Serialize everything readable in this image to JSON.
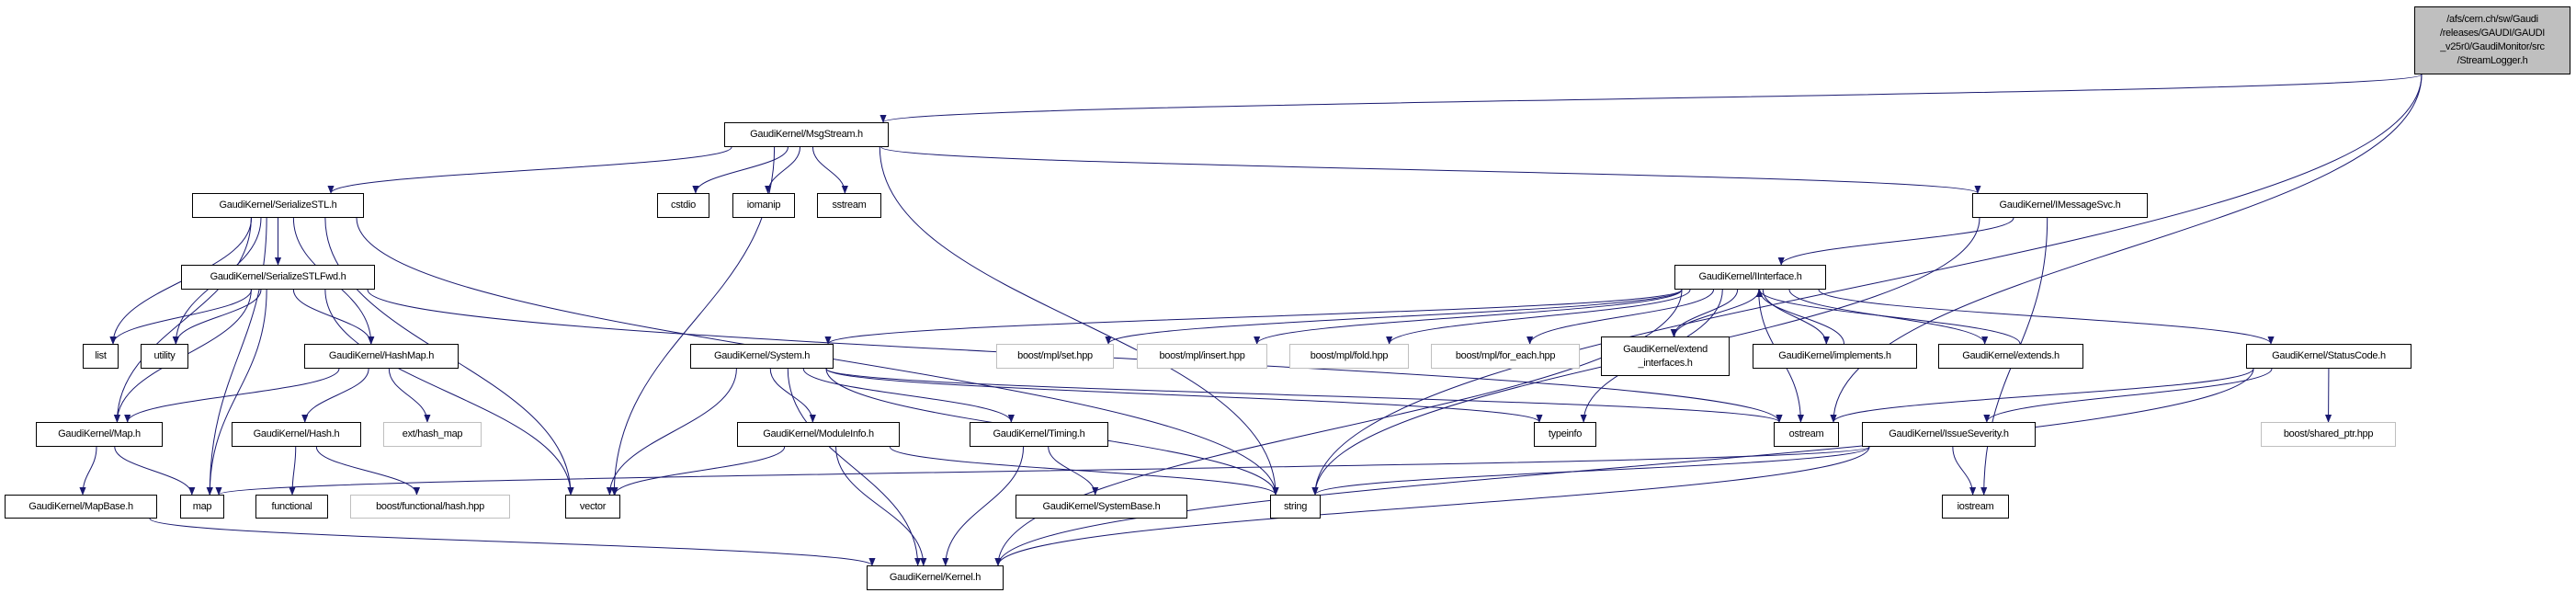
{
  "graph": {
    "type": "include-dependency-graph",
    "edge_color": "#191970",
    "root_fill": "#bfbfbf",
    "external_border": "#bfbfbf",
    "nodes": [
      {
        "id": "root",
        "label": "/afs/cern.ch/sw/Gaudi\n/releases/GAUDI/GAUDI\n_v25r0/GaudiMonitor/src\n/StreamLogger.h",
        "kind": "root"
      },
      {
        "id": "msgstream",
        "label": "GaudiKernel/MsgStream.h",
        "kind": "file"
      },
      {
        "id": "serializestl",
        "label": "GaudiKernel/SerializeSTL.h",
        "kind": "file"
      },
      {
        "id": "cstdio",
        "label": "cstdio",
        "kind": "file"
      },
      {
        "id": "iomanip",
        "label": "iomanip",
        "kind": "file"
      },
      {
        "id": "sstream",
        "label": "sstream",
        "kind": "file"
      },
      {
        "id": "imessagesvc",
        "label": "GaudiKernel/IMessageSvc.h",
        "kind": "file"
      },
      {
        "id": "serializestlfwd",
        "label": "GaudiKernel/SerializeSTLFwd.h",
        "kind": "file"
      },
      {
        "id": "iinterface",
        "label": "GaudiKernel/IInterface.h",
        "kind": "file"
      },
      {
        "id": "list",
        "label": "list",
        "kind": "file"
      },
      {
        "id": "utility",
        "label": "utility",
        "kind": "file"
      },
      {
        "id": "hashmap",
        "label": "GaudiKernel/HashMap.h",
        "kind": "file"
      },
      {
        "id": "system",
        "label": "GaudiKernel/System.h",
        "kind": "file"
      },
      {
        "id": "mplset",
        "label": "boost/mpl/set.hpp",
        "kind": "external"
      },
      {
        "id": "mplinsert",
        "label": "boost/mpl/insert.hpp",
        "kind": "external"
      },
      {
        "id": "mplfold",
        "label": "boost/mpl/fold.hpp",
        "kind": "external"
      },
      {
        "id": "mplforeach",
        "label": "boost/mpl/for_each.hpp",
        "kind": "external"
      },
      {
        "id": "extendif",
        "label": "GaudiKernel/extend\n_interfaces.h",
        "kind": "file"
      },
      {
        "id": "implements",
        "label": "GaudiKernel/implements.h",
        "kind": "file"
      },
      {
        "id": "extends",
        "label": "GaudiKernel/extends.h",
        "kind": "file"
      },
      {
        "id": "statuscode",
        "label": "GaudiKernel/StatusCode.h",
        "kind": "file"
      },
      {
        "id": "maph",
        "label": "GaudiKernel/Map.h",
        "kind": "file"
      },
      {
        "id": "hash",
        "label": "GaudiKernel/Hash.h",
        "kind": "file"
      },
      {
        "id": "exthashmap",
        "label": "ext/hash_map",
        "kind": "external"
      },
      {
        "id": "moduleinfo",
        "label": "GaudiKernel/ModuleInfo.h",
        "kind": "file"
      },
      {
        "id": "timing",
        "label": "GaudiKernel/Timing.h",
        "kind": "file"
      },
      {
        "id": "typeinfo",
        "label": "typeinfo",
        "kind": "file"
      },
      {
        "id": "ostream",
        "label": "ostream",
        "kind": "file"
      },
      {
        "id": "issueseverity",
        "label": "GaudiKernel/IssueSeverity.h",
        "kind": "file"
      },
      {
        "id": "sharedptr",
        "label": "boost/shared_ptr.hpp",
        "kind": "external"
      },
      {
        "id": "mapbase",
        "label": "GaudiKernel/MapBase.h",
        "kind": "file"
      },
      {
        "id": "map",
        "label": "map",
        "kind": "file"
      },
      {
        "id": "functional",
        "label": "functional",
        "kind": "file"
      },
      {
        "id": "funchash",
        "label": "boost/functional/hash.hpp",
        "kind": "external"
      },
      {
        "id": "vector",
        "label": "vector",
        "kind": "file"
      },
      {
        "id": "systembase",
        "label": "GaudiKernel/SystemBase.h",
        "kind": "file"
      },
      {
        "id": "string",
        "label": "string",
        "kind": "file"
      },
      {
        "id": "iostream",
        "label": "iostream",
        "kind": "file"
      },
      {
        "id": "kernel",
        "label": "GaudiKernel/Kernel.h",
        "kind": "file"
      }
    ],
    "edges": [
      [
        "root",
        "msgstream"
      ],
      [
        "root",
        "ostream"
      ],
      [
        "root",
        "string"
      ],
      [
        "msgstream",
        "serializestl"
      ],
      [
        "msgstream",
        "vector"
      ],
      [
        "msgstream",
        "cstdio"
      ],
      [
        "msgstream",
        "iomanip"
      ],
      [
        "msgstream",
        "sstream"
      ],
      [
        "msgstream",
        "string"
      ],
      [
        "msgstream",
        "imessagesvc"
      ],
      [
        "serializestl",
        "serializestlfwd"
      ],
      [
        "serializestl",
        "list"
      ],
      [
        "serializestl",
        "utility"
      ],
      [
        "serializestl",
        "maph"
      ],
      [
        "serializestl",
        "map"
      ],
      [
        "serializestl",
        "hashmap"
      ],
      [
        "serializestl",
        "vector"
      ],
      [
        "serializestl",
        "string"
      ],
      [
        "serializestlfwd",
        "list"
      ],
      [
        "serializestlfwd",
        "utility"
      ],
      [
        "serializestlfwd",
        "hashmap"
      ],
      [
        "serializestlfwd",
        "maph"
      ],
      [
        "serializestlfwd",
        "map"
      ],
      [
        "serializestlfwd",
        "vector"
      ],
      [
        "serializestlfwd",
        "ostream"
      ],
      [
        "hashmap",
        "maph"
      ],
      [
        "hashmap",
        "hash"
      ],
      [
        "hashmap",
        "exthashmap"
      ],
      [
        "maph",
        "mapbase"
      ],
      [
        "maph",
        "map"
      ],
      [
        "hash",
        "functional"
      ],
      [
        "hash",
        "funchash"
      ],
      [
        "mapbase",
        "kernel"
      ],
      [
        "imessagesvc",
        "iinterface"
      ],
      [
        "imessagesvc",
        "string"
      ],
      [
        "imessagesvc",
        "iostream"
      ],
      [
        "iinterface",
        "kernel"
      ],
      [
        "iinterface",
        "system"
      ],
      [
        "iinterface",
        "mplset"
      ],
      [
        "iinterface",
        "mplinsert"
      ],
      [
        "iinterface",
        "mplfold"
      ],
      [
        "iinterface",
        "mplforeach"
      ],
      [
        "iinterface",
        "extendif"
      ],
      [
        "iinterface",
        "implements"
      ],
      [
        "iinterface",
        "extends"
      ],
      [
        "iinterface",
        "statuscode"
      ],
      [
        "iinterface",
        "typeinfo"
      ],
      [
        "iinterface",
        "ostream"
      ],
      [
        "extendif",
        "iinterface"
      ],
      [
        "implements",
        "iinterface"
      ],
      [
        "extends",
        "iinterface"
      ],
      [
        "system",
        "vector"
      ],
      [
        "system",
        "moduleinfo"
      ],
      [
        "system",
        "timing"
      ],
      [
        "system",
        "kernel"
      ],
      [
        "system",
        "string"
      ],
      [
        "system",
        "typeinfo"
      ],
      [
        "system",
        "ostream"
      ],
      [
        "moduleinfo",
        "vector"
      ],
      [
        "moduleinfo",
        "kernel"
      ],
      [
        "moduleinfo",
        "string"
      ],
      [
        "timing",
        "systembase"
      ],
      [
        "timing",
        "kernel"
      ],
      [
        "statuscode",
        "sharedptr"
      ],
      [
        "statuscode",
        "ostream"
      ],
      [
        "statuscode",
        "issueseverity"
      ],
      [
        "statuscode",
        "kernel"
      ],
      [
        "issueseverity",
        "map"
      ],
      [
        "issueseverity",
        "string"
      ],
      [
        "issueseverity",
        "kernel"
      ],
      [
        "issueseverity",
        "iostream"
      ]
    ]
  }
}
